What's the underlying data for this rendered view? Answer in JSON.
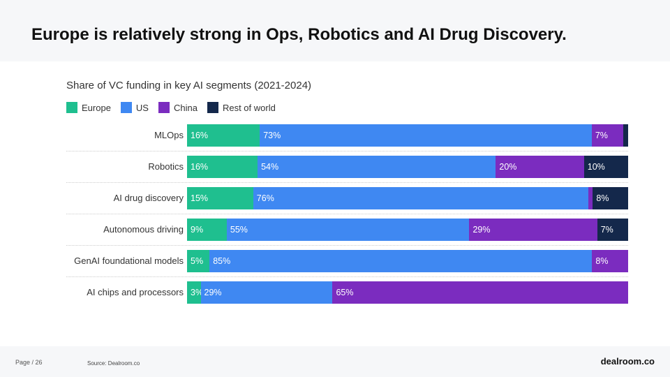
{
  "header": {
    "title": "Europe is relatively strong in Ops, Robotics and AI Drug Discovery."
  },
  "footer": {
    "page": "Page / 26",
    "source": "Source: Dealroom.co",
    "logo": "dealroom.co"
  },
  "chart_data": {
    "type": "bar",
    "stacked": true,
    "orientation": "horizontal",
    "title": "Share of VC funding in key AI segments (2021-2024)",
    "legend_position": "top-left",
    "series_names": [
      "Europe",
      "US",
      "China",
      "Rest of world"
    ],
    "colors": [
      "#1fbf8f",
      "#3f88f2",
      "#7b2cbf",
      "#14284b"
    ],
    "categories": [
      "MLOps",
      "Robotics",
      "AI drug discovery",
      "Autonomous driving",
      "GenAI foundational models",
      "AI chips and processors"
    ],
    "values": [
      [
        16,
        73,
        7,
        1
      ],
      [
        16,
        54,
        20,
        10
      ],
      [
        15,
        76,
        1,
        8
      ],
      [
        9,
        55,
        29,
        7
      ],
      [
        5,
        85,
        8,
        0
      ],
      [
        3,
        29,
        65,
        0
      ]
    ],
    "labels": [
      [
        "16%",
        "73%",
        "7%",
        null
      ],
      [
        "16%",
        "54%",
        "20%",
        "10%"
      ],
      [
        "15%",
        "76%",
        null,
        "8%"
      ],
      [
        "9%",
        "55%",
        "29%",
        "7%"
      ],
      [
        "5%",
        "85%",
        "8%",
        null
      ],
      [
        "3%",
        "29%",
        "65%",
        null
      ]
    ],
    "xlim": [
      0,
      100
    ]
  }
}
